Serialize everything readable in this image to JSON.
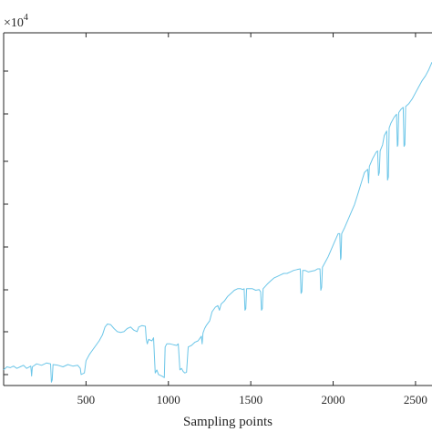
{
  "chart_data": {
    "type": "line",
    "xlabel": "Sampling points",
    "ylabel": "",
    "y_multiplier": "×10",
    "y_multiplier_exponent": "4",
    "xlim": [
      0,
      2600
    ],
    "x_ticks": [
      500,
      1000,
      1500,
      2000,
      2500
    ],
    "grid": false,
    "line_color": "#6cc6e8",
    "series": [
      {
        "values": [
          [
            0,
            18
          ],
          [
            20,
            22
          ],
          [
            40,
            21
          ],
          [
            60,
            23
          ],
          [
            80,
            20
          ],
          [
            100,
            22
          ],
          [
            120,
            24
          ],
          [
            140,
            20
          ],
          [
            165,
            23
          ],
          [
            170,
            10
          ],
          [
            174,
            22
          ],
          [
            200,
            26
          ],
          [
            230,
            24
          ],
          [
            260,
            27
          ],
          [
            285,
            26
          ],
          [
            290,
            2
          ],
          [
            295,
            5
          ],
          [
            300,
            25
          ],
          [
            330,
            24
          ],
          [
            360,
            22
          ],
          [
            390,
            25
          ],
          [
            420,
            23
          ],
          [
            450,
            24
          ],
          [
            465,
            20
          ],
          [
            470,
            12
          ],
          [
            490,
            14
          ],
          [
            500,
            30
          ],
          [
            520,
            38
          ],
          [
            540,
            44
          ],
          [
            560,
            50
          ],
          [
            580,
            56
          ],
          [
            600,
            64
          ],
          [
            615,
            74
          ],
          [
            630,
            78
          ],
          [
            650,
            77
          ],
          [
            670,
            72
          ],
          [
            690,
            68
          ],
          [
            710,
            67
          ],
          [
            730,
            68
          ],
          [
            750,
            72
          ],
          [
            770,
            74
          ],
          [
            790,
            70
          ],
          [
            810,
            68
          ],
          [
            820,
            74
          ],
          [
            840,
            76
          ],
          [
            860,
            75
          ],
          [
            866,
            58
          ],
          [
            872,
            52
          ],
          [
            880,
            58
          ],
          [
            900,
            56
          ],
          [
            910,
            60
          ],
          [
            920,
            14
          ],
          [
            930,
            18
          ],
          [
            940,
            12
          ],
          [
            960,
            10
          ],
          [
            975,
            8
          ],
          [
            980,
            48
          ],
          [
            990,
            52
          ],
          [
            1010,
            52
          ],
          [
            1030,
            51
          ],
          [
            1050,
            50
          ],
          [
            1060,
            52
          ],
          [
            1070,
            18
          ],
          [
            1080,
            20
          ],
          [
            1090,
            16
          ],
          [
            1100,
            14
          ],
          [
            1110,
            15
          ],
          [
            1120,
            48
          ],
          [
            1140,
            50
          ],
          [
            1160,
            54
          ],
          [
            1180,
            56
          ],
          [
            1200,
            62
          ],
          [
            1205,
            52
          ],
          [
            1210,
            66
          ],
          [
            1220,
            72
          ],
          [
            1230,
            76
          ],
          [
            1250,
            82
          ],
          [
            1265,
            94
          ],
          [
            1285,
            100
          ],
          [
            1300,
            102
          ],
          [
            1310,
            96
          ],
          [
            1320,
            104
          ],
          [
            1340,
            108
          ],
          [
            1360,
            114
          ],
          [
            1380,
            118
          ],
          [
            1400,
            122
          ],
          [
            1420,
            124
          ],
          [
            1440,
            124
          ],
          [
            1450,
            123
          ],
          [
            1460,
            124
          ],
          [
            1465,
            96
          ],
          [
            1470,
            98
          ],
          [
            1475,
            124
          ],
          [
            1490,
            124
          ],
          [
            1510,
            124
          ],
          [
            1530,
            122
          ],
          [
            1550,
            123
          ],
          [
            1560,
            120
          ],
          [
            1565,
            96
          ],
          [
            1570,
            98
          ],
          [
            1575,
            124
          ],
          [
            1600,
            130
          ],
          [
            1620,
            134
          ],
          [
            1640,
            138
          ],
          [
            1660,
            140
          ],
          [
            1680,
            142
          ],
          [
            1700,
            144
          ],
          [
            1720,
            144
          ],
          [
            1740,
            146
          ],
          [
            1760,
            148
          ],
          [
            1780,
            149
          ],
          [
            1800,
            150
          ],
          [
            1805,
            118
          ],
          [
            1810,
            120
          ],
          [
            1815,
            148
          ],
          [
            1830,
            148
          ],
          [
            1850,
            146
          ],
          [
            1870,
            147
          ],
          [
            1890,
            148
          ],
          [
            1905,
            150
          ],
          [
            1920,
            150
          ],
          [
            1925,
            122
          ],
          [
            1930,
            126
          ],
          [
            1935,
            152
          ],
          [
            1950,
            158
          ],
          [
            1970,
            166
          ],
          [
            1990,
            176
          ],
          [
            2010,
            186
          ],
          [
            2030,
            196
          ],
          [
            2040,
            196
          ],
          [
            2045,
            162
          ],
          [
            2048,
            165
          ],
          [
            2052,
            196
          ],
          [
            2070,
            204
          ],
          [
            2090,
            214
          ],
          [
            2110,
            224
          ],
          [
            2130,
            234
          ],
          [
            2150,
            248
          ],
          [
            2170,
            262
          ],
          [
            2190,
            276
          ],
          [
            2210,
            280
          ],
          [
            2215,
            262
          ],
          [
            2220,
            284
          ],
          [
            2240,
            294
          ],
          [
            2260,
            302
          ],
          [
            2270,
            304
          ],
          [
            2275,
            272
          ],
          [
            2280,
            276
          ],
          [
            2285,
            304
          ],
          [
            2300,
            312
          ],
          [
            2310,
            324
          ],
          [
            2325,
            330
          ],
          [
            2330,
            266
          ],
          [
            2335,
            270
          ],
          [
            2340,
            334
          ],
          [
            2350,
            340
          ],
          [
            2370,
            348
          ],
          [
            2385,
            352
          ],
          [
            2390,
            310
          ],
          [
            2393,
            312
          ],
          [
            2398,
            354
          ],
          [
            2410,
            358
          ],
          [
            2425,
            361
          ],
          [
            2430,
            310
          ],
          [
            2435,
            312
          ],
          [
            2440,
            362
          ],
          [
            2460,
            366
          ],
          [
            2480,
            372
          ],
          [
            2500,
            380
          ],
          [
            2520,
            388
          ],
          [
            2540,
            396
          ],
          [
            2560,
            402
          ],
          [
            2580,
            410
          ],
          [
            2600,
            420
          ]
        ]
      }
    ]
  }
}
